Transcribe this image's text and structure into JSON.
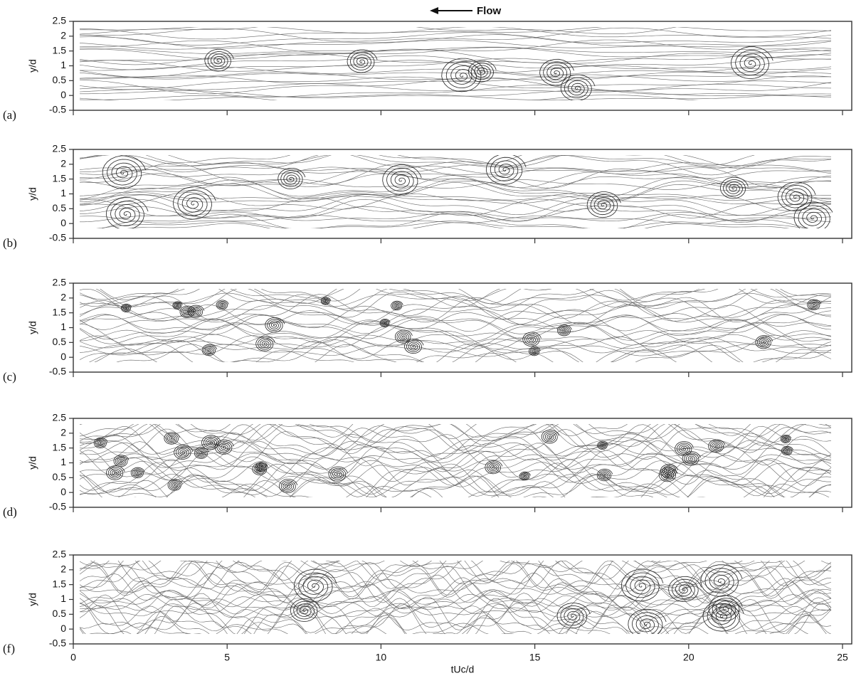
{
  "chart_data": [
    {
      "type": "streamline",
      "label": "(a)",
      "annotation": "Flow",
      "ylabel": "y/d",
      "xlim": [
        0,
        25.3
      ],
      "ylim": [
        -0.5,
        2.5
      ],
      "yticks": [
        -0.5,
        0,
        0.5,
        1,
        1.5,
        2,
        2.5
      ]
    },
    {
      "type": "streamline",
      "label": "(b)",
      "ylabel": "y/d",
      "xlim": [
        0,
        25.3
      ],
      "ylim": [
        -0.5,
        2.5
      ],
      "yticks": [
        -0.5,
        0,
        0.5,
        1,
        1.5,
        2,
        2.5
      ]
    },
    {
      "type": "streamline",
      "label": "(c)",
      "ylabel": "y/d",
      "xlim": [
        0,
        25.3
      ],
      "ylim": [
        -0.5,
        2.5
      ],
      "yticks": [
        -0.5,
        0,
        0.5,
        1,
        1.5,
        2,
        2.5
      ]
    },
    {
      "type": "streamline",
      "label": "(d)",
      "ylabel": "y/d",
      "xlim": [
        0,
        25.3
      ],
      "ylim": [
        -0.5,
        2.5
      ],
      "yticks": [
        -0.5,
        0,
        0.5,
        1,
        1.5,
        2,
        2.5
      ]
    },
    {
      "type": "streamline",
      "label": "(f)",
      "ylabel": "y/d",
      "xlabel": "tUc/d",
      "xlim": [
        0,
        25.3
      ],
      "ylim": [
        -0.5,
        2.5
      ],
      "yticks": [
        -0.5,
        0,
        0.5,
        1,
        1.5,
        2,
        2.5
      ],
      "xticks": [
        0,
        5,
        10,
        15,
        20,
        25
      ]
    }
  ]
}
